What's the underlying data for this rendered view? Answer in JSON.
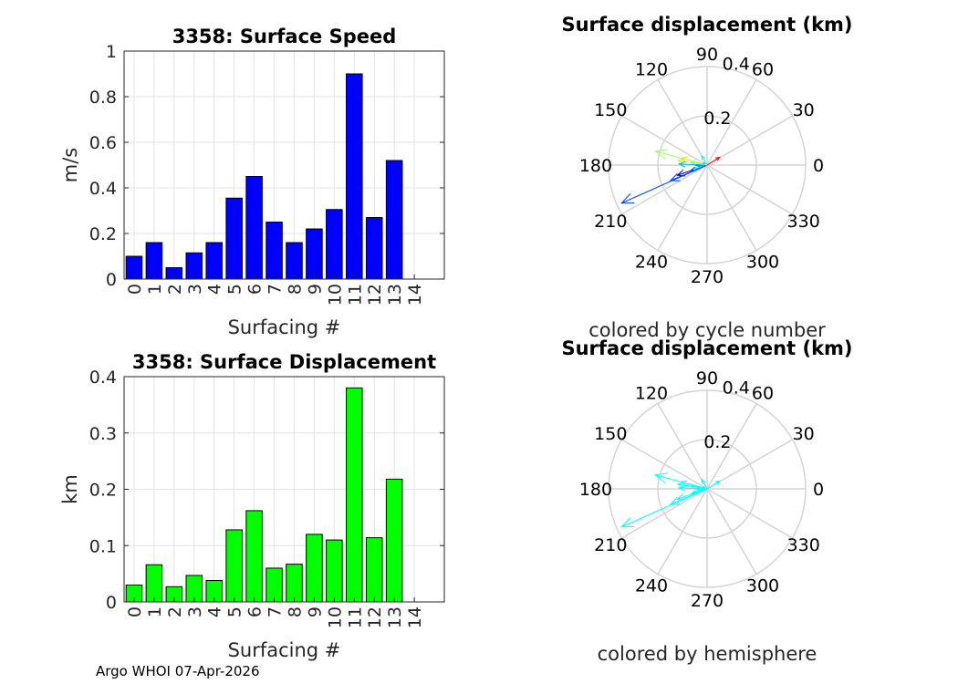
{
  "chart_data": [
    {
      "type": "bar",
      "title": "3358: Surface Speed",
      "xlabel": "Surfacing #",
      "ylabel": "m/s",
      "categories": [
        "0",
        "1",
        "2",
        "3",
        "4",
        "5",
        "6",
        "7",
        "8",
        "9",
        "10",
        "11",
        "12",
        "13",
        "14"
      ],
      "values": [
        0.1,
        0.16,
        0.05,
        0.115,
        0.16,
        0.355,
        0.45,
        0.25,
        0.16,
        0.22,
        0.305,
        0.9,
        0.27,
        0.52,
        null
      ],
      "ylim": [
        0,
        1
      ],
      "yticks": [
        "0",
        "0.2",
        "0.4",
        "0.6",
        "0.8",
        "1"
      ],
      "grid": true,
      "color": "#0000ff"
    },
    {
      "type": "compass",
      "title": "Surface displacement (km)",
      "caption": "colored by cycle number",
      "rmax": 0.4,
      "radial_ticks": [
        "0.2",
        "0.4"
      ],
      "angle_labels": [
        "0",
        "30",
        "60",
        "90",
        "120",
        "150",
        "180",
        "210",
        "240",
        "270",
        "300",
        "330"
      ],
      "vectors": [
        {
          "r": 0.03,
          "theta": 180,
          "color": "#00008f"
        },
        {
          "r": 0.066,
          "theta": 197,
          "color": "#0000cf"
        },
        {
          "r": 0.027,
          "theta": 175,
          "color": "#0010ff"
        },
        {
          "r": 0.047,
          "theta": 180,
          "color": "#0050ff"
        },
        {
          "r": 0.038,
          "theta": 185,
          "color": "#0090ff"
        },
        {
          "r": 0.128,
          "theta": 199,
          "color": "#00008f"
        },
        {
          "r": 0.162,
          "theta": 203,
          "color": "#0040ff"
        },
        {
          "r": 0.06,
          "theta": 197,
          "color": "#00ffff"
        },
        {
          "r": 0.067,
          "theta": 170,
          "color": "#40ffbf"
        },
        {
          "r": 0.12,
          "theta": 171,
          "color": "#bfff40"
        },
        {
          "r": 0.11,
          "theta": 165,
          "color": "#ffd000"
        },
        {
          "r": 0.38,
          "theta": 204,
          "color": "#0040ff"
        },
        {
          "r": 0.114,
          "theta": 178,
          "color": "#00b0ff"
        },
        {
          "r": 0.218,
          "theta": 165,
          "color": "#a0ff60"
        },
        {
          "r": 0.06,
          "theta": 32,
          "color": "#ff0000"
        },
        {
          "r": 0.045,
          "theta": 120,
          "color": "#00ffff"
        }
      ]
    },
    {
      "type": "bar",
      "title": "3358: Surface Displacement",
      "xlabel": "Surfacing #",
      "ylabel": "km",
      "categories": [
        "0",
        "1",
        "2",
        "3",
        "4",
        "5",
        "6",
        "7",
        "8",
        "9",
        "10",
        "11",
        "12",
        "13",
        "14"
      ],
      "values": [
        0.03,
        0.066,
        0.027,
        0.047,
        0.038,
        0.128,
        0.162,
        0.06,
        0.067,
        0.12,
        0.11,
        0.38,
        0.114,
        0.218,
        null
      ],
      "ylim": [
        0,
        0.4
      ],
      "yticks": [
        "0",
        "0.1",
        "0.2",
        "0.3",
        "0.4"
      ],
      "grid": true,
      "color": "#00ff00"
    },
    {
      "type": "compass",
      "title": "Surface displacement (km)",
      "caption": "colored by hemisphere",
      "rmax": 0.4,
      "radial_ticks": [
        "0.2",
        "0.4"
      ],
      "angle_labels": [
        "0",
        "30",
        "60",
        "90",
        "120",
        "150",
        "180",
        "210",
        "240",
        "270",
        "300",
        "330"
      ],
      "vectors": [
        {
          "r": 0.03,
          "theta": 180,
          "color": "#00ffff"
        },
        {
          "r": 0.066,
          "theta": 197,
          "color": "#00ffff"
        },
        {
          "r": 0.027,
          "theta": 175,
          "color": "#00ffff"
        },
        {
          "r": 0.047,
          "theta": 180,
          "color": "#00ffff"
        },
        {
          "r": 0.038,
          "theta": 185,
          "color": "#00ffff"
        },
        {
          "r": 0.128,
          "theta": 199,
          "color": "#00ffff"
        },
        {
          "r": 0.162,
          "theta": 203,
          "color": "#00ffff"
        },
        {
          "r": 0.06,
          "theta": 197,
          "color": "#00ffff"
        },
        {
          "r": 0.067,
          "theta": 170,
          "color": "#00ffff"
        },
        {
          "r": 0.12,
          "theta": 171,
          "color": "#00ffff"
        },
        {
          "r": 0.11,
          "theta": 165,
          "color": "#00ffff"
        },
        {
          "r": 0.38,
          "theta": 204,
          "color": "#00ffff"
        },
        {
          "r": 0.114,
          "theta": 178,
          "color": "#00ffff"
        },
        {
          "r": 0.218,
          "theta": 165,
          "color": "#00ffff"
        },
        {
          "r": 0.06,
          "theta": 32,
          "color": "#00ffff"
        },
        {
          "r": 0.045,
          "theta": 120,
          "color": "#00ffff"
        }
      ]
    }
  ],
  "footer": {
    "text": "Argo WHOI 07-Apr-2026"
  }
}
